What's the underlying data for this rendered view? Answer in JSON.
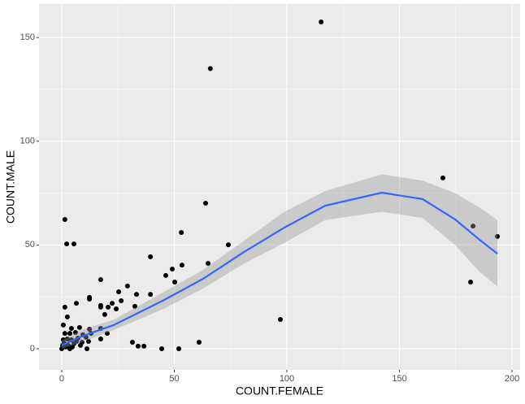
{
  "chart_data": {
    "type": "scatter",
    "xlabel": "COUNT.FEMALE",
    "ylabel": "COUNT.MALE",
    "xlim": [
      -10.1,
      203.6
    ],
    "ylim": [
      -10.2,
      166.1
    ],
    "xticks": [
      0,
      50,
      100,
      150,
      200
    ],
    "yticks": [
      0,
      50,
      100,
      150
    ],
    "xminor": [
      25,
      75,
      125,
      175
    ],
    "yminor": [
      25,
      75,
      125
    ],
    "grid": true,
    "point_color": "#000000",
    "line_color": "#3366ff",
    "band_color": "#999999",
    "points": {
      "x": [
        115.2,
        66,
        169.3,
        63.9,
        1.4,
        182.7,
        193.5,
        53.1,
        74,
        2.2,
        5.4,
        39.4,
        181.6,
        65,
        53.4,
        49.1,
        46.2,
        50.2,
        17.3,
        29.2,
        25.3,
        33.2,
        39.4,
        26.4,
        22.4,
        12.3,
        12.3,
        17.3,
        17.3,
        20.6,
        24.2,
        32.5,
        6.5,
        1.4,
        2.5,
        19.1,
        97.1,
        17.3,
        20.2,
        4.3,
        7.9,
        0.7,
        12.3,
        13,
        10.8,
        17.3,
        11.9,
        31.4,
        61,
        33.9,
        36.5,
        44.4,
        52,
        11.2,
        0,
        0.4,
        1,
        1.8,
        2.9,
        3.6,
        4.7,
        5.4,
        6.5,
        7.2,
        8.3,
        9,
        3.6,
        1.4,
        6.1,
        2.5,
        4.3,
        0.7,
        9.4
      ],
      "y": [
        157.5,
        135,
        82.3,
        70.1,
        62.3,
        59.1,
        54.1,
        56,
        50.1,
        50.5,
        50.5,
        44.3,
        32.1,
        41.1,
        40.3,
        38.4,
        35.3,
        32.1,
        33.3,
        30.2,
        27.4,
        26.2,
        26.2,
        23.1,
        21.9,
        24.7,
        23.9,
        20.8,
        20,
        20,
        19.2,
        20.4,
        21.9,
        20,
        15.3,
        16.5,
        14.1,
        9.8,
        7.4,
        9.8,
        10.2,
        11.4,
        9.4,
        7.4,
        5.5,
        4.7,
        3.5,
        3.1,
        3.1,
        1.2,
        1.2,
        0,
        0,
        0,
        0,
        1.6,
        2.7,
        0.8,
        1.6,
        0,
        0.8,
        2.4,
        3.5,
        5.1,
        1.6,
        3.1,
        7.4,
        7.4,
        7.8,
        4.7,
        4.3,
        4.3,
        6.7
      ]
    },
    "smooth": {
      "x": [
        0,
        8.7,
        23.1,
        44.8,
        62.8,
        80.9,
        98.9,
        117,
        142.2,
        160.3,
        174.7,
        185.6,
        193.5
      ],
      "y": [
        1.6,
        5.9,
        11.4,
        23.1,
        33.7,
        46.6,
        58.4,
        68.9,
        75.2,
        72.1,
        62.3,
        52.5,
        45.8
      ],
      "lower": [
        0,
        3,
        9,
        19,
        29,
        41,
        51,
        62,
        66,
        63,
        50,
        37,
        30
      ],
      "upper": [
        4,
        9,
        14,
        27,
        38,
        52,
        66,
        76,
        84,
        81,
        75,
        68,
        62
      ]
    }
  }
}
